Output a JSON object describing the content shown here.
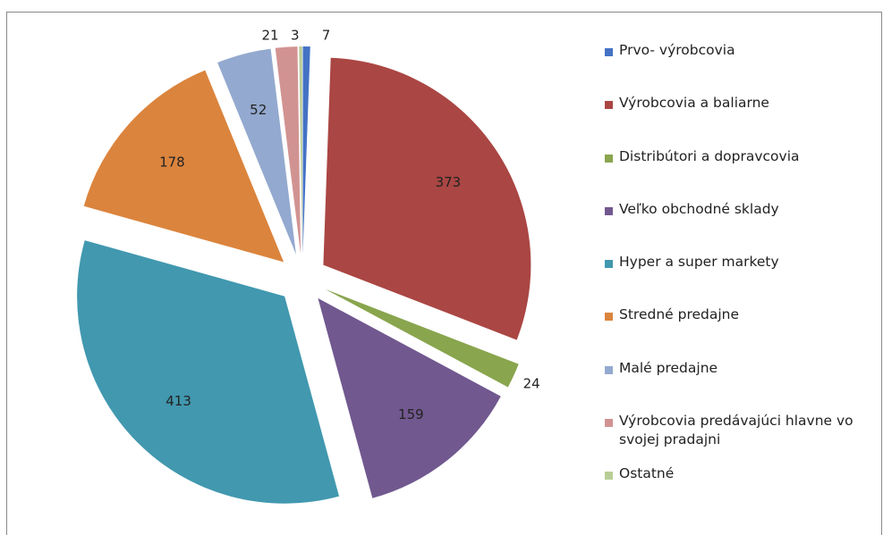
{
  "chart_data": {
    "type": "pie",
    "categories": [
      "Prvo- výrobcovia",
      "Výrobcovia a baliarne",
      "Distribútori a dopravcovia",
      "Veľko obchodné sklady",
      "Hyper a super markety",
      "Stredné predajne",
      "Malé predajne",
      "Výrobcovia predávajúci hlavne vo svojej pradajni",
      "Ostatné"
    ],
    "values": [
      7,
      373,
      24,
      159,
      413,
      178,
      52,
      21,
      3
    ],
    "colors": [
      "#4472c4",
      "#aa4643",
      "#89a54e",
      "#71588f",
      "#4198af",
      "#db843d",
      "#93a9cf",
      "#d19392",
      "#b9cd96"
    ],
    "exploded": true,
    "legend": "right"
  }
}
